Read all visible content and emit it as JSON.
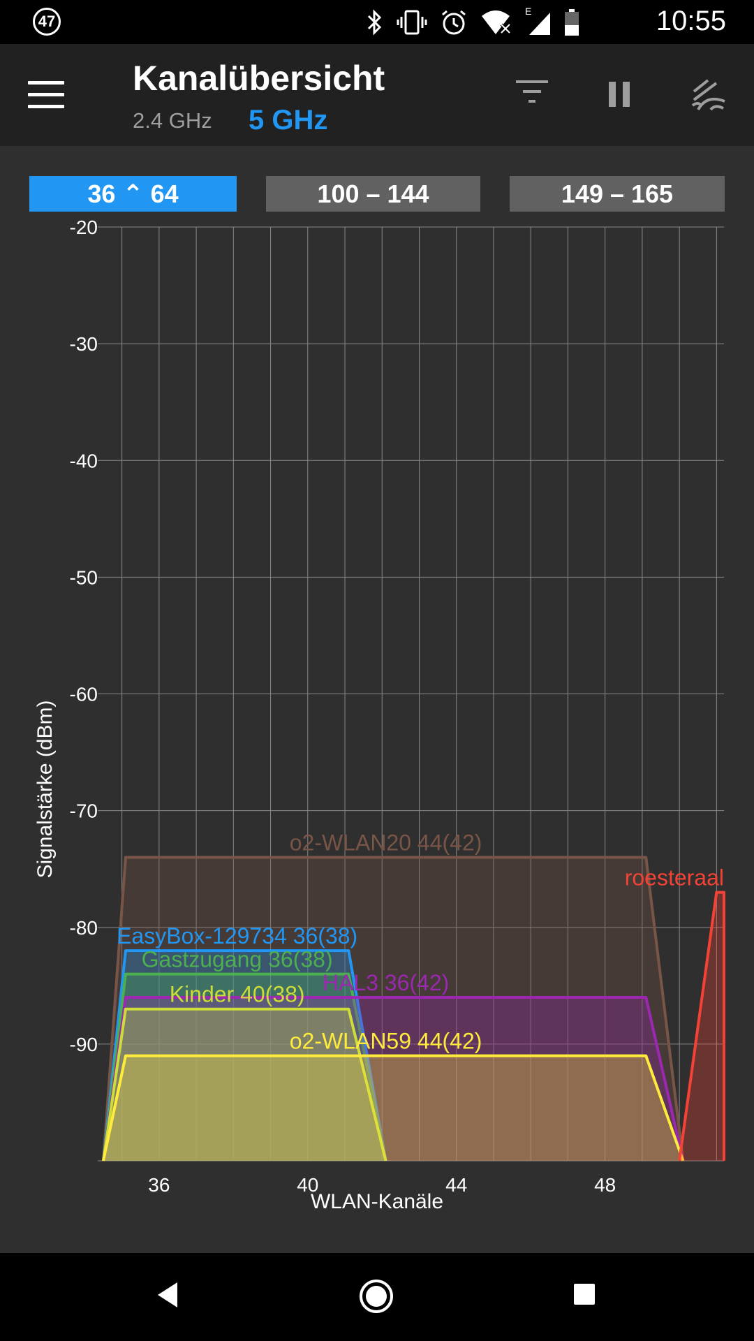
{
  "status_bar": {
    "notification_count": "47",
    "time": "10:55",
    "network_type": "E"
  },
  "toolbar": {
    "title": "Kanalübersicht",
    "band_24": "2.4 GHz",
    "band_5": "5 GHz"
  },
  "channel_ranges": [
    {
      "label": "36 ⌃ 64",
      "selected": true
    },
    {
      "label": "100 – 144",
      "selected": false
    },
    {
      "label": "149 – 165",
      "selected": false
    }
  ],
  "chart_data": {
    "type": "area",
    "ylabel": "Signalstärke (dBm)",
    "xlabel": "WLAN-Kanäle",
    "ylim": [
      -100,
      -20
    ],
    "xlim": [
      34.5,
      51.2
    ],
    "y_ticks": [
      -20,
      -30,
      -40,
      -50,
      -60,
      -70,
      -80,
      -90
    ],
    "x_ticks": [
      36,
      40,
      44,
      48
    ],
    "grid": true,
    "series": [
      {
        "name": "o2-WLAN20 44(42)",
        "color": "#795548",
        "level": -74,
        "x": [
          34.5,
          35.1,
          49.1,
          50.1
        ]
      },
      {
        "name": "EasyBox-129734 36(38)",
        "color": "#2196f3",
        "level": -82,
        "x": [
          34.5,
          35.1,
          41.1,
          42.1
        ]
      },
      {
        "name": "Gastzugang 36(38)",
        "color": "#4caf50",
        "level": -84,
        "x": [
          34.5,
          35.1,
          41.1,
          42.1
        ]
      },
      {
        "name": "HAL3 36(42)",
        "color": "#9c27b0",
        "level": -86,
        "x": [
          34.5,
          35.1,
          49.1,
          50.1
        ]
      },
      {
        "name": "Kinder 40(38)",
        "color": "#cddc39",
        "level": -87,
        "x": [
          34.5,
          35.1,
          41.1,
          42.1
        ]
      },
      {
        "name": "o2-WLAN59 44(42)",
        "color": "#ffeb3b",
        "level": -91,
        "x": [
          34.5,
          35.1,
          49.1,
          50.1
        ]
      },
      {
        "name": "roesteraal",
        "color": "#f44336",
        "level": -77,
        "x": [
          50.0,
          51.0,
          51.2,
          51.2
        ]
      }
    ]
  }
}
